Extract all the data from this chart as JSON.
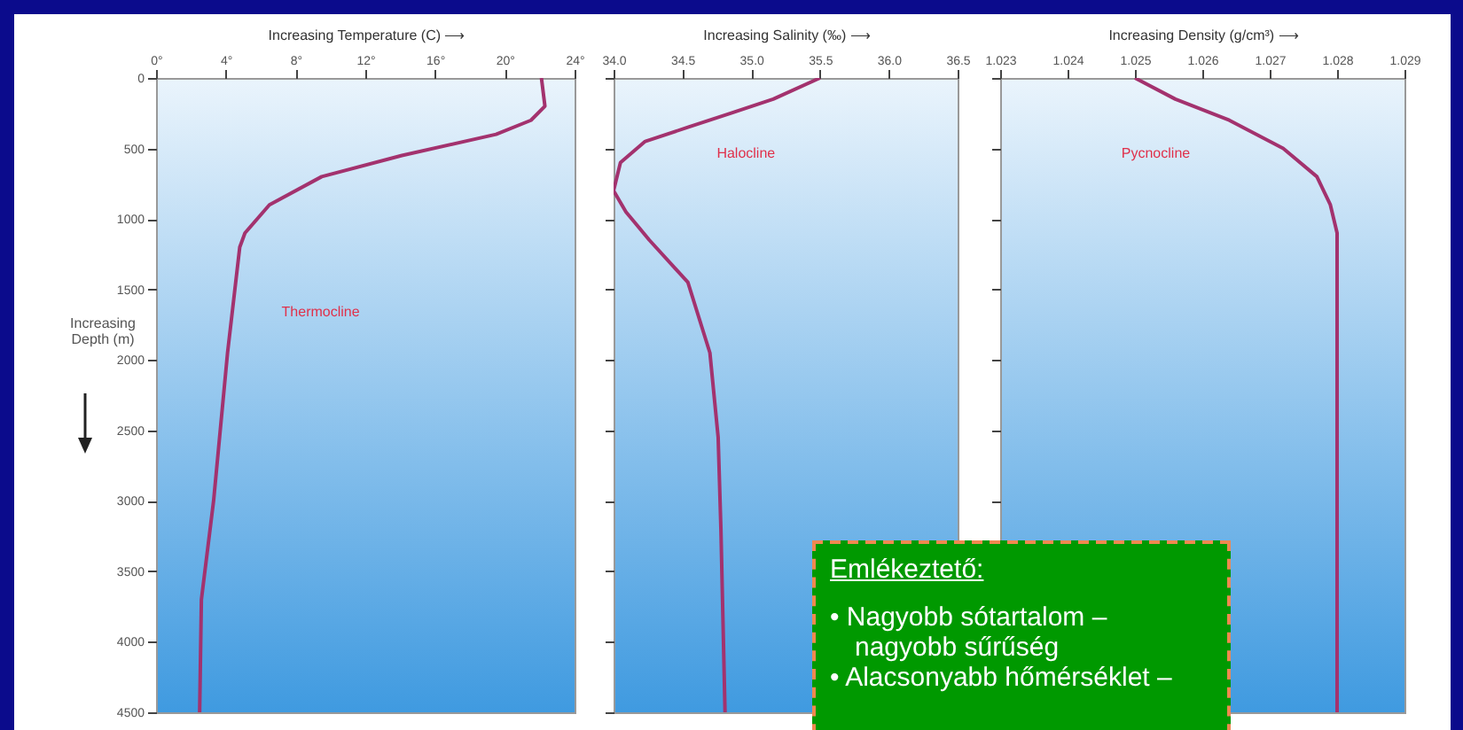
{
  "chart_data": [
    {
      "type": "line",
      "xlabel": "Increasing Temperature (C) ⟶",
      "ylabel": "Increasing Depth (m)",
      "xlim": [
        0,
        24
      ],
      "xticks": [
        {
          "value": 0,
          "label": "0°"
        },
        {
          "value": 4,
          "label": "4°"
        },
        {
          "value": 8,
          "label": "8°"
        },
        {
          "value": 12,
          "label": "12°"
        },
        {
          "value": 16,
          "label": "16°"
        },
        {
          "value": 20,
          "label": "20°"
        },
        {
          "value": 24,
          "label": "24°"
        }
      ],
      "ylim": [
        4500,
        0
      ],
      "yticks": [
        0,
        500,
        1000,
        1500,
        2000,
        2500,
        3000,
        3500,
        4000,
        4500
      ],
      "series": [
        {
          "color": "#a3326e",
          "x": [
            22.1,
            22.3,
            21.5,
            19.5,
            14.1,
            9.5,
            6.5,
            5.1,
            4.8,
            4.1,
            3.3,
            2.6,
            2.5
          ],
          "values": [
            0,
            200,
            300,
            400,
            550,
            700,
            900,
            1100,
            1200,
            1950,
            3000,
            3700,
            4500
          ]
        }
      ],
      "annotations": [
        "Thermocline"
      ]
    },
    {
      "type": "line",
      "xlabel": "Increasing Salinity (‰) ⟶",
      "xlim": [
        34.0,
        36.5
      ],
      "xticks": [
        {
          "value": 34.0,
          "label": "34.0"
        },
        {
          "value": 34.5,
          "label": "34.5"
        },
        {
          "value": 35.0,
          "label": "35.0"
        },
        {
          "value": 35.5,
          "label": "35.5"
        },
        {
          "value": 36.0,
          "label": "36.0"
        },
        {
          "value": 36.5,
          "label": "36.5"
        }
      ],
      "ylim": [
        4500,
        0
      ],
      "yticks": [
        0,
        500,
        1000,
        1500,
        2000,
        2500,
        3000,
        3500,
        4000,
        4500
      ],
      "tick_labels": "x",
      "series": [
        {
          "color": "#a3326e",
          "x": [
            35.5,
            35.16,
            34.85,
            34.54,
            34.23,
            34.05,
            34.0,
            34.09,
            34.26,
            34.54,
            34.7,
            34.76,
            34.78,
            34.81
          ],
          "values": [
            0,
            150,
            250,
            350,
            450,
            600,
            800,
            950,
            1150,
            1450,
            1950,
            2550,
            3200,
            4500
          ]
        }
      ],
      "annotations": [
        "Halocline"
      ]
    },
    {
      "type": "line",
      "xlabel": "Increasing Density (g/cm³) ⟶",
      "xlim": [
        1.023,
        1.029
      ],
      "xticks": [
        {
          "value": 1.023,
          "label": "1.023"
        },
        {
          "value": 1.024,
          "label": "1.024"
        },
        {
          "value": 1.025,
          "label": "1.025"
        },
        {
          "value": 1.026,
          "label": "1.026"
        },
        {
          "value": 1.027,
          "label": "1.027"
        },
        {
          "value": 1.028,
          "label": "1.028"
        },
        {
          "value": 1.029,
          "label": "1.029"
        }
      ],
      "ylim": [
        4500,
        0
      ],
      "yticks": [
        0,
        500,
        1000,
        1500,
        2000,
        2500,
        3000,
        3500,
        4000,
        4500
      ],
      "tick_labels": "x",
      "series": [
        {
          "color": "#a3326e",
          "x": [
            1.025,
            1.0256,
            1.0264,
            1.0272,
            1.0277,
            1.0279,
            1.028,
            1.028
          ],
          "values": [
            0,
            150,
            300,
            500,
            700,
            900,
            1100,
            4500
          ]
        }
      ],
      "annotations": [
        "Pycnocline"
      ]
    },
    {
      "type": "other",
      "title": "Emlékeztető:",
      "annotations": [
        "• Nagyobb sótartalom – nagyobb sűrűség",
        "• Alacsonyabb hőmérséklet –"
      ]
    }
  ]
}
